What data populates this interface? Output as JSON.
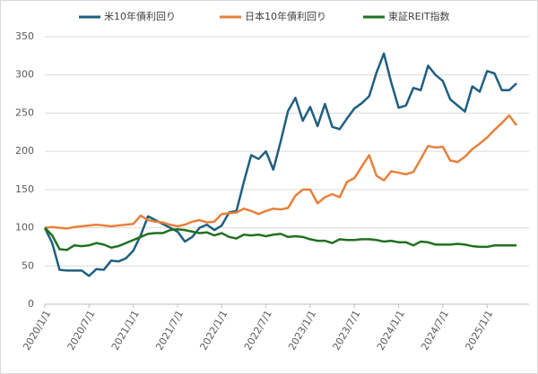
{
  "chart_data": {
    "type": "line",
    "x": [
      "2020/1/1",
      "2020/2/1",
      "2020/3/1",
      "2020/4/1",
      "2020/5/1",
      "2020/6/1",
      "2020/7/1",
      "2020/8/1",
      "2020/9/1",
      "2020/10/1",
      "2020/11/1",
      "2020/12/1",
      "2021/1/1",
      "2021/2/1",
      "2021/3/1",
      "2021/4/1",
      "2021/5/1",
      "2021/6/1",
      "2021/7/1",
      "2021/8/1",
      "2021/9/1",
      "2021/10/1",
      "2021/11/1",
      "2021/12/1",
      "2022/1/1",
      "2022/2/1",
      "2022/3/1",
      "2022/4/1",
      "2022/5/1",
      "2022/6/1",
      "2022/7/1",
      "2022/8/1",
      "2022/9/1",
      "2022/10/1",
      "2022/11/1",
      "2022/12/1",
      "2023/1/1",
      "2023/2/1",
      "2023/3/1",
      "2023/4/1",
      "2023/5/1",
      "2023/6/1",
      "2023/7/1",
      "2023/8/1",
      "2023/9/1",
      "2023/10/1",
      "2023/11/1",
      "2023/12/1",
      "2024/1/1",
      "2024/2/1",
      "2024/3/1",
      "2024/4/1",
      "2024/5/1",
      "2024/6/1",
      "2024/7/1",
      "2024/8/1",
      "2024/9/1",
      "2024/10/1",
      "2024/11/1",
      "2024/12/1",
      "2025/1/1",
      "2025/2/1",
      "2025/3/1",
      "2025/4/1",
      "2025/5/1"
    ],
    "xticks": [
      "2020/1/1",
      "2020/7/1",
      "2021/1/1",
      "2021/7/1",
      "2022/1/1",
      "2022/7/1",
      "2023/1/1",
      "2023/7/1",
      "2024/1/1",
      "2024/7/1",
      "2025/1/1"
    ],
    "ylim": [
      0,
      350
    ],
    "yticks": [
      0,
      50,
      100,
      150,
      200,
      250,
      300,
      350
    ],
    "grid": true,
    "legend": "top",
    "series": [
      {
        "name": "米10年債利回り",
        "color": "#1f5f80",
        "values": [
          100,
          80,
          45,
          44,
          44,
          44,
          37,
          46,
          45,
          57,
          56,
          60,
          70,
          90,
          115,
          110,
          105,
          100,
          95,
          82,
          88,
          100,
          104,
          97,
          103,
          120,
          122,
          160,
          195,
          190,
          200,
          176,
          213,
          253,
          270,
          240,
          258,
          233,
          262,
          232,
          229,
          243,
          256,
          263,
          272,
          303,
          328,
          290,
          257,
          260,
          283,
          280,
          312,
          300,
          292,
          268,
          260,
          252,
          285,
          278,
          305,
          302,
          280,
          280,
          289
        ]
      },
      {
        "name": "日本10年債利回り",
        "color": "#e8803a",
        "values": [
          100,
          101,
          100,
          99,
          101,
          102,
          103,
          104,
          103,
          102,
          103,
          104,
          105,
          116,
          110,
          108,
          107,
          104,
          102,
          104,
          108,
          110,
          107,
          108,
          118,
          119,
          120,
          125,
          122,
          118,
          122,
          125,
          124,
          126,
          142,
          150,
          150,
          132,
          140,
          144,
          140,
          160,
          165,
          180,
          195,
          168,
          162,
          174,
          172,
          170,
          173,
          190,
          207,
          205,
          206,
          188,
          186,
          193,
          203,
          210,
          218,
          228,
          237,
          247,
          234
        ]
      },
      {
        "name": "東証REIT指数",
        "color": "#217021",
        "values": [
          100,
          90,
          72,
          71,
          77,
          76,
          77,
          80,
          78,
          74,
          76,
          80,
          84,
          88,
          92,
          93,
          93,
          97,
          98,
          97,
          95,
          93,
          94,
          90,
          93,
          88,
          86,
          91,
          90,
          91,
          89,
          91,
          92,
          88,
          89,
          88,
          85,
          83,
          83,
          80,
          85,
          84,
          84,
          85,
          85,
          84,
          82,
          83,
          81,
          81,
          77,
          82,
          81,
          78,
          78,
          78,
          79,
          78,
          76,
          75,
          75,
          77,
          77,
          77,
          77
        ]
      }
    ]
  }
}
